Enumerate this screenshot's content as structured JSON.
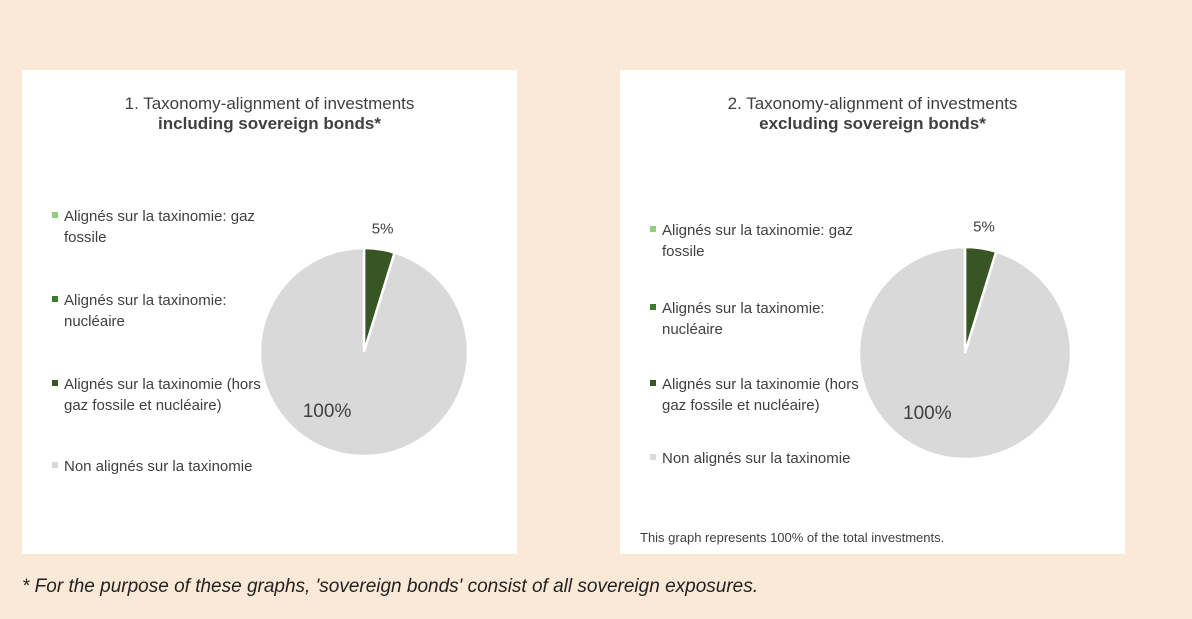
{
  "chart_data": [
    {
      "type": "pie",
      "title": "1. Taxonomy-alignment of investments",
      "subtitle": "including sovereign bonds*",
      "categories": [
        "Alignés sur la taxinomie: gaz fossile",
        "Alignés sur la taxinomie: nucléaire",
        "Alignés sur la taxinomie (hors gaz fossile et nucléaire)",
        "Non alignés sur la taxinomie"
      ],
      "values": [
        0,
        0,
        5,
        100
      ],
      "value_labels": [
        null,
        null,
        "5%",
        "100%"
      ],
      "colors": [
        "#8fd07c",
        "#3e7b2c",
        "#375623",
        "#d9d9d9"
      ],
      "legend": "left"
    },
    {
      "type": "pie",
      "title": "2. Taxonomy-alignment of investments",
      "subtitle": "excluding sovereign bonds*",
      "categories": [
        "Alignés sur la taxinomie: gaz fossile",
        "Alignés sur la taxinomie: nucléaire",
        "Alignés sur la taxinomie (hors gaz fossile et nucléaire)",
        "Non alignés sur la taxinomie"
      ],
      "values": [
        0,
        0,
        5,
        100
      ],
      "value_labels": [
        null,
        null,
        "5%",
        "100%"
      ],
      "colors": [
        "#8fd07c",
        "#3e7b2c",
        "#375623",
        "#d9d9d9"
      ],
      "legend": "left",
      "annotation": "This graph represents 100% of the total investments."
    }
  ],
  "footnote": "* For the purpose of these graphs, 'sovereign bonds' consist of all sovereign exposures."
}
